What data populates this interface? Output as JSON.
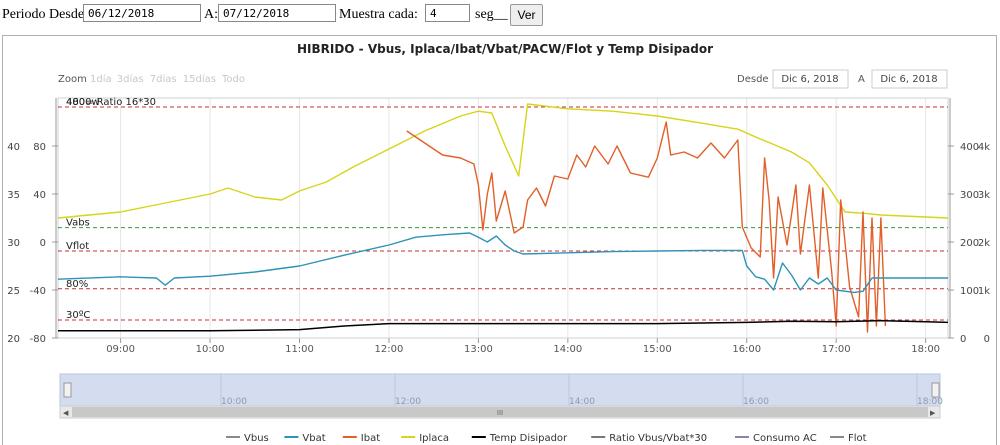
{
  "controls": {
    "periodo_label": "Periodo Desde:",
    "desde_value": "06/12/2018",
    "a_label": "A:",
    "hasta_value": "07/12/2018",
    "muestra_label": "Muestra cada:",
    "muestra_value": "4",
    "seg_label": "seg__",
    "ver_label": "Ver"
  },
  "toolbar": {
    "zoom_label": "Zoom",
    "zoom_options": [
      "1día",
      "3días",
      "7días",
      "15días",
      "Todo"
    ],
    "desde_label": "Desde",
    "desde_date": "Dic 6, 2018",
    "a_label": "A",
    "hasta_date": "Dic 6, 2018"
  },
  "navigator": {
    "ticks": [
      "10:00",
      "12:00",
      "14:00",
      "16:00",
      "18:00"
    ],
    "scroll_grip": "III"
  },
  "colors": {
    "vbus": "#8a8a8a",
    "vbat": "#2e93b8",
    "ibat": "#e25f2a",
    "iplaca": "#d8d418",
    "temp": "#000000",
    "ratio": "#777777",
    "consumo": "#8585a8",
    "flot": "#888888",
    "ref_green": "#3a9a3a",
    "ref_red": "#c63030"
  },
  "chart_data": {
    "type": "line",
    "title": "HIBRIDO - Vbus, Iplaca/Ibat/Vbat/PACW/Flot y Temp Disipador",
    "x_ticks": [
      "09:00",
      "10:00",
      "11:00",
      "12:00",
      "13:00",
      "14:00",
      "15:00",
      "16:00",
      "17:00",
      "18:00"
    ],
    "x_range": [
      8.3,
      18.25
    ],
    "y_axes": {
      "left_outer": {
        "ticks": [
          "40",
          "35",
          "30",
          "25",
          "20"
        ],
        "range": [
          20,
          40
        ]
      },
      "left_inner": {
        "ticks": [
          "80",
          "40",
          "0",
          "-40",
          "-80"
        ],
        "range": [
          -80,
          80
        ]
      },
      "right_inner": {
        "ticks": [
          "400",
          "300",
          "200",
          "100",
          "0"
        ],
        "range": [
          0,
          400
        ]
      },
      "right_outer": {
        "ticks": [
          "4k",
          "3k",
          "2k",
          "1k",
          "0"
        ],
        "range": [
          0,
          4000
        ]
      }
    },
    "reference_lines": [
      {
        "label": "480= Ratio 16*30",
        "y": 480,
        "color": "green"
      },
      {
        "label": "4000w",
        "y": 400,
        "color": "red"
      },
      {
        "label": "Vabs",
        "y": 184,
        "color": "green"
      },
      {
        "label": "Vflot",
        "y": 145,
        "color": "red"
      },
      {
        "label": "80%",
        "y": 82,
        "color": "red"
      },
      {
        "label": "30ºC",
        "y": 30,
        "color": "red"
      }
    ],
    "series": [
      {
        "key": "iplaca",
        "name": "Iplaca",
        "points": [
          [
            8.3,
            200
          ],
          [
            9.0,
            210
          ],
          [
            9.5,
            225
          ],
          [
            10.0,
            240
          ],
          [
            10.2,
            250
          ],
          [
            10.5,
            235
          ],
          [
            10.8,
            230
          ],
          [
            11.0,
            245
          ],
          [
            11.3,
            260
          ],
          [
            11.6,
            285
          ],
          [
            12.0,
            315
          ],
          [
            12.4,
            345
          ],
          [
            12.8,
            370
          ],
          [
            13.0,
            378
          ],
          [
            13.15,
            375
          ],
          [
            13.3,
            320
          ],
          [
            13.45,
            270
          ],
          [
            13.55,
            390
          ],
          [
            14.0,
            382
          ],
          [
            14.5,
            378
          ],
          [
            15.0,
            370
          ],
          [
            15.5,
            358
          ],
          [
            15.9,
            348
          ],
          [
            16.1,
            335
          ],
          [
            16.5,
            310
          ],
          [
            16.7,
            292
          ],
          [
            16.9,
            255
          ],
          [
            17.1,
            210
          ],
          [
            17.3,
            208
          ],
          [
            17.5,
            205
          ],
          [
            18.25,
            200
          ]
        ]
      },
      {
        "key": "ibat",
        "name": "Ibat",
        "points": [
          [
            12.2,
            345
          ],
          [
            12.4,
            325
          ],
          [
            12.6,
            305
          ],
          [
            12.8,
            300
          ],
          [
            12.95,
            290
          ],
          [
            13.0,
            255
          ],
          [
            13.05,
            180
          ],
          [
            13.1,
            240
          ],
          [
            13.15,
            275
          ],
          [
            13.2,
            195
          ],
          [
            13.3,
            245
          ],
          [
            13.4,
            175
          ],
          [
            13.5,
            185
          ],
          [
            13.55,
            230
          ],
          [
            13.65,
            250
          ],
          [
            13.75,
            220
          ],
          [
            13.85,
            270
          ],
          [
            14.0,
            265
          ],
          [
            14.1,
            305
          ],
          [
            14.2,
            285
          ],
          [
            14.3,
            320
          ],
          [
            14.45,
            290
          ],
          [
            14.55,
            320
          ],
          [
            14.7,
            275
          ],
          [
            14.9,
            268
          ],
          [
            15.0,
            300
          ],
          [
            15.1,
            360
          ],
          [
            15.15,
            305
          ],
          [
            15.3,
            310
          ],
          [
            15.45,
            300
          ],
          [
            15.6,
            325
          ],
          [
            15.75,
            300
          ],
          [
            15.9,
            330
          ],
          [
            15.95,
            185
          ],
          [
            16.05,
            150
          ],
          [
            16.15,
            135
          ],
          [
            16.2,
            300
          ],
          [
            16.25,
            230
          ],
          [
            16.3,
            100
          ],
          [
            16.35,
            235
          ],
          [
            16.45,
            155
          ],
          [
            16.55,
            255
          ],
          [
            16.6,
            140
          ],
          [
            16.7,
            255
          ],
          [
            16.8,
            100
          ],
          [
            16.85,
            250
          ],
          [
            16.95,
            110
          ],
          [
            17.0,
            20
          ],
          [
            17.05,
            230
          ],
          [
            17.15,
            85
          ],
          [
            17.25,
            35
          ],
          [
            17.3,
            210
          ],
          [
            17.35,
            10
          ],
          [
            17.4,
            200
          ],
          [
            17.45,
            20
          ],
          [
            17.5,
            200
          ],
          [
            17.55,
            20
          ]
        ]
      },
      {
        "key": "vbat",
        "name": "Vbat",
        "points": [
          [
            8.3,
            98
          ],
          [
            9.0,
            102
          ],
          [
            9.4,
            100
          ],
          [
            9.5,
            88
          ],
          [
            9.6,
            100
          ],
          [
            10.0,
            103
          ],
          [
            10.5,
            110
          ],
          [
            11.0,
            120
          ],
          [
            11.5,
            138
          ],
          [
            12.0,
            155
          ],
          [
            12.3,
            168
          ],
          [
            12.6,
            172
          ],
          [
            12.9,
            175
          ],
          [
            13.0,
            168
          ],
          [
            13.1,
            160
          ],
          [
            13.2,
            170
          ],
          [
            13.3,
            155
          ],
          [
            13.4,
            145
          ],
          [
            13.5,
            140
          ],
          [
            14.0,
            142
          ],
          [
            14.5,
            144
          ],
          [
            15.0,
            145
          ],
          [
            15.5,
            146
          ],
          [
            15.95,
            146
          ],
          [
            16.0,
            120
          ],
          [
            16.1,
            102
          ],
          [
            16.2,
            98
          ],
          [
            16.3,
            80
          ],
          [
            16.4,
            125
          ],
          [
            16.5,
            105
          ],
          [
            16.6,
            80
          ],
          [
            16.7,
            100
          ],
          [
            16.8,
            90
          ],
          [
            16.9,
            100
          ],
          [
            17.0,
            80
          ],
          [
            17.2,
            76
          ],
          [
            17.3,
            78
          ],
          [
            17.4,
            100
          ],
          [
            18.25,
            100
          ]
        ]
      },
      {
        "key": "temp",
        "name": "Temp Disipador",
        "points": [
          [
            8.3,
            12
          ],
          [
            9.0,
            12
          ],
          [
            10.0,
            12
          ],
          [
            11.0,
            14
          ],
          [
            11.5,
            20
          ],
          [
            12.0,
            24
          ],
          [
            13.0,
            24
          ],
          [
            14.0,
            24
          ],
          [
            15.0,
            24
          ],
          [
            16.0,
            26
          ],
          [
            16.5,
            28
          ],
          [
            17.0,
            27
          ],
          [
            17.5,
            29
          ],
          [
            18.0,
            27
          ],
          [
            18.25,
            26
          ]
        ]
      }
    ],
    "legend": {
      "position": "bottom",
      "items": [
        {
          "key": "vbus",
          "label": "Vbus"
        },
        {
          "key": "vbat",
          "label": "Vbat"
        },
        {
          "key": "ibat",
          "label": "Ibat"
        },
        {
          "key": "iplaca",
          "label": "Iplaca"
        },
        {
          "key": "temp",
          "label": "Temp Disipador"
        },
        {
          "key": "ratio",
          "label": "Ratio Vbus/Vbat*30"
        },
        {
          "key": "consumo",
          "label": "Consumo AC"
        },
        {
          "key": "flot",
          "label": "Flot"
        }
      ]
    }
  }
}
